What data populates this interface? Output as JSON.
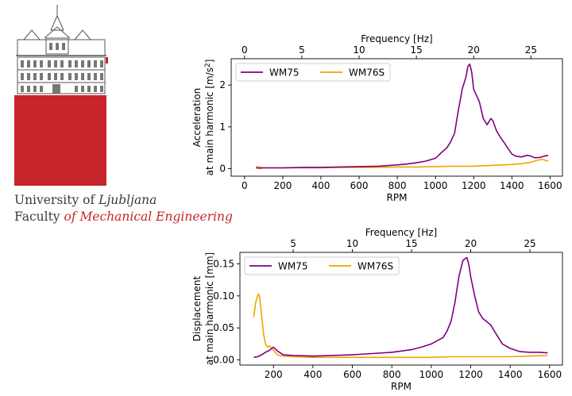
{
  "logo": {
    "line1_a": "University of ",
    "line1_b": "Ljubljana",
    "line2_a": "Faculty ",
    "line2_b": "of Mechanical Engineering",
    "red": "#c8242b"
  },
  "chart_data": [
    {
      "type": "line",
      "xlabel": "RPM",
      "ylabel_line1": "Acceleration",
      "ylabel_line2": "at main harmonic [m/s",
      "ylabel_sup": "2",
      "ylabel_end": "]",
      "top_xlabel": "Frequency [Hz]",
      "xlim": [
        -70,
        1665
      ],
      "ylim": [
        -0.18,
        2.63
      ],
      "xticks": [
        0,
        200,
        400,
        600,
        800,
        1000,
        1200,
        1400,
        1600
      ],
      "yticks": [
        0,
        1,
        2
      ],
      "top_ticks": [
        0,
        5,
        10,
        15,
        20,
        25
      ],
      "legend": "top-left",
      "series": [
        {
          "name": "WM75",
          "color": "#800080",
          "x": [
            60,
            80,
            100,
            150,
            200,
            300,
            400,
            500,
            600,
            700,
            800,
            850,
            900,
            950,
            1000,
            1030,
            1060,
            1080,
            1100,
            1120,
            1140,
            1160,
            1170,
            1180,
            1190,
            1200,
            1210,
            1230,
            1250,
            1270,
            1290,
            1300,
            1320,
            1340,
            1360,
            1380,
            1400,
            1420,
            1450,
            1480,
            1500,
            1520,
            1550,
            1570,
            1590
          ],
          "y": [
            0.02,
            0.01,
            0.02,
            0.02,
            0.02,
            0.03,
            0.03,
            0.04,
            0.05,
            0.06,
            0.09,
            0.11,
            0.14,
            0.18,
            0.25,
            0.38,
            0.5,
            0.65,
            0.85,
            1.4,
            1.9,
            2.2,
            2.45,
            2.5,
            2.3,
            1.9,
            1.8,
            1.6,
            1.2,
            1.05,
            1.2,
            1.15,
            0.9,
            0.75,
            0.62,
            0.48,
            0.35,
            0.3,
            0.28,
            0.32,
            0.3,
            0.26,
            0.27,
            0.3,
            0.32
          ]
        },
        {
          "name": "WM76S",
          "color": "#f0a500",
          "x": [
            60,
            80,
            100,
            150,
            200,
            300,
            400,
            500,
            600,
            700,
            800,
            900,
            1000,
            1100,
            1200,
            1300,
            1400,
            1450,
            1500,
            1530,
            1560,
            1590
          ],
          "y": [
            0.05,
            0.04,
            0.02,
            0.02,
            0.02,
            0.02,
            0.02,
            0.03,
            0.03,
            0.03,
            0.04,
            0.04,
            0.05,
            0.06,
            0.06,
            0.08,
            0.1,
            0.12,
            0.15,
            0.2,
            0.22,
            0.18
          ]
        }
      ]
    },
    {
      "type": "line",
      "xlabel": "RPM",
      "ylabel_line1": "Displacement",
      "ylabel_line2": "at main harmonic [mm]",
      "top_xlabel": "Frequency [Hz]",
      "xlim": [
        30,
        1665
      ],
      "ylim": [
        -0.008,
        0.168
      ],
      "xticks": [
        200,
        400,
        600,
        800,
        1000,
        1200,
        1400,
        1600
      ],
      "yticks": [
        0.0,
        0.05,
        0.1,
        0.15
      ],
      "ytick_labels": [
        "0.00",
        "0.05",
        "0.10",
        "0.15"
      ],
      "top_ticks": [
        5,
        10,
        15,
        20,
        25
      ],
      "legend": "top-left",
      "series": [
        {
          "name": "WM75",
          "color": "#800080",
          "x": [
            100,
            120,
            140,
            160,
            180,
            200,
            220,
            250,
            300,
            400,
            500,
            600,
            700,
            800,
            850,
            900,
            950,
            1000,
            1030,
            1060,
            1080,
            1100,
            1120,
            1140,
            1160,
            1170,
            1180,
            1190,
            1200,
            1220,
            1240,
            1260,
            1280,
            1300,
            1320,
            1340,
            1360,
            1400,
            1450,
            1500,
            1550,
            1590
          ],
          "y": [
            0.004,
            0.005,
            0.008,
            0.012,
            0.015,
            0.02,
            0.014,
            0.008,
            0.007,
            0.006,
            0.007,
            0.008,
            0.01,
            0.012,
            0.014,
            0.016,
            0.02,
            0.025,
            0.03,
            0.035,
            0.045,
            0.06,
            0.09,
            0.13,
            0.155,
            0.158,
            0.16,
            0.15,
            0.13,
            0.1,
            0.075,
            0.065,
            0.06,
            0.055,
            0.045,
            0.035,
            0.025,
            0.018,
            0.013,
            0.012,
            0.012,
            0.011
          ]
        },
        {
          "name": "WM76S",
          "color": "#f0a500",
          "x": [
            100,
            110,
            120,
            125,
            130,
            140,
            150,
            160,
            170,
            180,
            190,
            200,
            220,
            250,
            300,
            400,
            500,
            600,
            700,
            800,
            900,
            1000,
            1100,
            1200,
            1300,
            1400,
            1500,
            1590
          ],
          "y": [
            0.067,
            0.09,
            0.1,
            0.103,
            0.098,
            0.07,
            0.04,
            0.025,
            0.02,
            0.022,
            0.018,
            0.015,
            0.008,
            0.006,
            0.005,
            0.004,
            0.004,
            0.004,
            0.004,
            0.004,
            0.004,
            0.004,
            0.005,
            0.005,
            0.005,
            0.005,
            0.006,
            0.007
          ]
        }
      ]
    }
  ]
}
